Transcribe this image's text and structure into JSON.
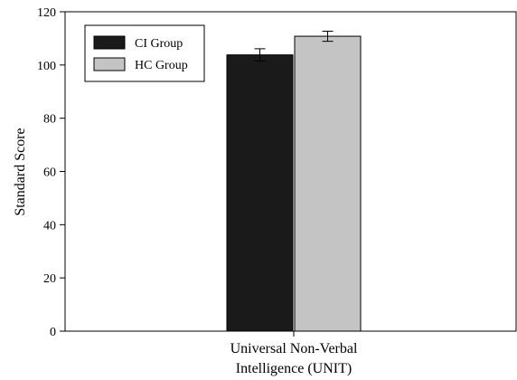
{
  "chart_data": {
    "type": "bar",
    "categories": [
      "Universal Non-Verbal Intelligence (UNIT)"
    ],
    "category_label_lines": [
      "Universal Non-Verbal",
      "Intelligence (UNIT)"
    ],
    "series": [
      {
        "name": "CI Group",
        "values": [
          103.8
        ],
        "error": [
          2.3
        ],
        "color": "#1a1a1a"
      },
      {
        "name": "HC Group",
        "values": [
          110.8
        ],
        "error": [
          1.9
        ],
        "color": "#c4c4c4"
      }
    ],
    "ylabel": "Standard Score",
    "ylim": [
      0,
      120
    ],
    "yticks": [
      "0",
      "20",
      "40",
      "60",
      "80",
      "100",
      "120"
    ],
    "legend_position": "top-left",
    "grid": false
  }
}
